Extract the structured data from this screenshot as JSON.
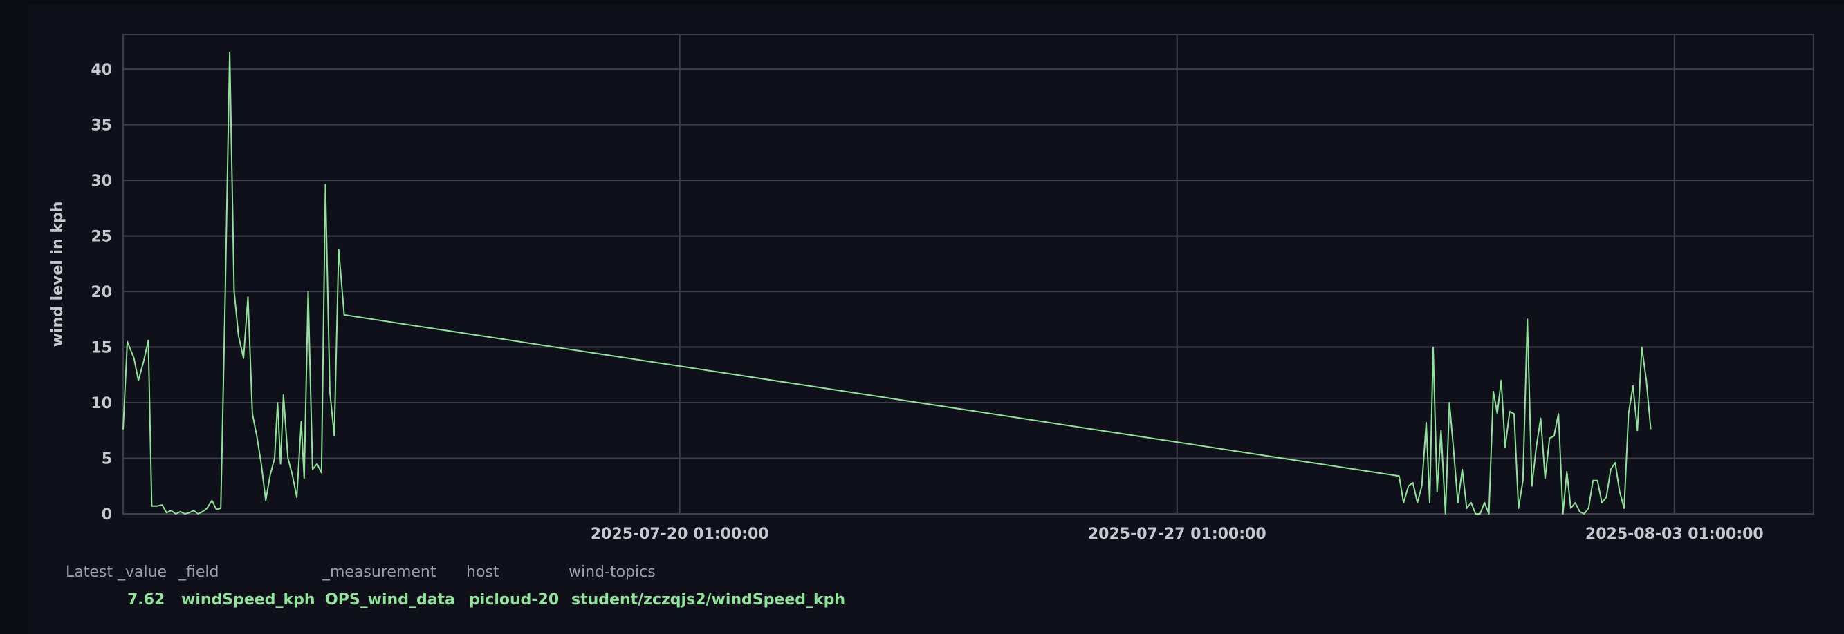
{
  "chart_data": {
    "type": "line",
    "ylabel": "wind level in kph",
    "ylim": [
      0,
      41.5
    ],
    "yticks": [
      0,
      5,
      10,
      15,
      20,
      25,
      30,
      35,
      40
    ],
    "xlim": [
      "2025-07-12 05:00:00",
      "2025-08-05 00:00:00"
    ],
    "xticks": [
      "2025-07-20 01:00:00",
      "2025-07-27 01:00:00",
      "2025-08-03 01:00:00"
    ],
    "grid": true,
    "series_color": "#8fe39a",
    "series": [
      {
        "values": [
          [
            "2025-07-12 05:00:00",
            7.6
          ],
          [
            "2025-07-12 06:25:00",
            15.5
          ],
          [
            "2025-07-12 08:40:00",
            14.0
          ],
          [
            "2025-07-12 10:10:00",
            12.0
          ],
          [
            "2025-07-12 12:00:00",
            13.8
          ],
          [
            "2025-07-12 13:30:00",
            15.6
          ],
          [
            "2025-07-12 14:40:00",
            0.7
          ],
          [
            "2025-07-12 16:30:00",
            0.7
          ],
          [
            "2025-07-12 18:10:00",
            0.8
          ],
          [
            "2025-07-12 19:40:00",
            0.1
          ],
          [
            "2025-07-12 21:10:00",
            0.3
          ],
          [
            "2025-07-12 22:50:00",
            0.0
          ],
          [
            "2025-07-13 00:20:00",
            0.2
          ],
          [
            "2025-07-13 01:50:00",
            0.0
          ],
          [
            "2025-07-13 03:20:00",
            0.1
          ],
          [
            "2025-07-13 04:50:00",
            0.3
          ],
          [
            "2025-07-13 06:20:00",
            0.0
          ],
          [
            "2025-07-13 07:50:00",
            0.2
          ],
          [
            "2025-07-13 09:20:00",
            0.5
          ],
          [
            "2025-07-13 11:00:00",
            1.2
          ],
          [
            "2025-07-13 12:30:00",
            0.4
          ],
          [
            "2025-07-13 14:00:00",
            0.5
          ],
          [
            "2025-07-13 15:30:00",
            20.0
          ],
          [
            "2025-07-13 17:00:00",
            41.5
          ],
          [
            "2025-07-13 18:30:00",
            20.0
          ],
          [
            "2025-07-13 20:00:00",
            16.0
          ],
          [
            "2025-07-13 21:40:00",
            14.0
          ],
          [
            "2025-07-13 23:10:00",
            19.5
          ],
          [
            "2025-07-14 00:40:00",
            9.0
          ],
          [
            "2025-07-14 02:10:00",
            7.0
          ],
          [
            "2025-07-14 03:40:00",
            4.5
          ],
          [
            "2025-07-14 05:10:00",
            1.2
          ],
          [
            "2025-07-14 06:40:00",
            3.5
          ],
          [
            "2025-07-14 08:10:00",
            5.0
          ],
          [
            "2025-07-14 09:10:00",
            10.0
          ],
          [
            "2025-07-14 10:10:00",
            4.5
          ],
          [
            "2025-07-14 11:10:00",
            10.7
          ],
          [
            "2025-07-14 12:40:00",
            5.0
          ],
          [
            "2025-07-14 14:10:00",
            3.5
          ],
          [
            "2025-07-14 15:40:00",
            1.5
          ],
          [
            "2025-07-14 17:10:00",
            8.3
          ],
          [
            "2025-07-14 18:10:00",
            3.2
          ],
          [
            "2025-07-14 19:30:00",
            20.0
          ],
          [
            "2025-07-14 21:00:00",
            4.0
          ],
          [
            "2025-07-14 22:30:00",
            4.5
          ],
          [
            "2025-07-15 00:00:00",
            3.7
          ],
          [
            "2025-07-15 01:20:00",
            29.6
          ],
          [
            "2025-07-15 02:50:00",
            11.0
          ],
          [
            "2025-07-15 04:20:00",
            7.0
          ],
          [
            "2025-07-15 05:50:00",
            23.8
          ],
          [
            "2025-07-15 07:40:00",
            17.9
          ],
          [
            "2025-07-30 04:00:00",
            3.4
          ],
          [
            "2025-07-30 05:30:00",
            1.0
          ],
          [
            "2025-07-30 07:10:00",
            2.5
          ],
          [
            "2025-07-30 08:40:00",
            2.8
          ],
          [
            "2025-07-30 10:10:00",
            1.0
          ],
          [
            "2025-07-30 11:40:00",
            2.5
          ],
          [
            "2025-07-30 13:10:00",
            8.2
          ],
          [
            "2025-07-30 14:20:00",
            1.0
          ],
          [
            "2025-07-30 15:30:00",
            15.0
          ],
          [
            "2025-07-30 16:50:00",
            2.0
          ],
          [
            "2025-07-30 18:10:00",
            7.5
          ],
          [
            "2025-07-30 19:40:00",
            0.0
          ],
          [
            "2025-07-30 21:00:00",
            10.0
          ],
          [
            "2025-07-30 22:20:00",
            6.0
          ],
          [
            "2025-07-30 23:50:00",
            1.0
          ],
          [
            "2025-07-31 01:20:00",
            4.0
          ],
          [
            "2025-07-31 02:50:00",
            0.5
          ],
          [
            "2025-07-31 04:20:00",
            1.0
          ],
          [
            "2025-07-31 05:50:00",
            0.0
          ],
          [
            "2025-07-31 07:20:00",
            0.0
          ],
          [
            "2025-07-31 08:50:00",
            1.0
          ],
          [
            "2025-07-31 10:20:00",
            0.0
          ],
          [
            "2025-07-31 11:50:00",
            11.0
          ],
          [
            "2025-07-31 13:10:00",
            9.0
          ],
          [
            "2025-07-31 14:30:00",
            12.0
          ],
          [
            "2025-07-31 15:50:00",
            6.0
          ],
          [
            "2025-07-31 17:20:00",
            9.2
          ],
          [
            "2025-07-31 18:50:00",
            9.0
          ],
          [
            "2025-07-31 20:20:00",
            0.5
          ],
          [
            "2025-07-31 21:50:00",
            3.0
          ],
          [
            "2025-07-31 23:20:00",
            17.5
          ],
          [
            "2025-08-01 00:50:00",
            2.5
          ],
          [
            "2025-08-01 02:20:00",
            6.0
          ],
          [
            "2025-08-01 03:50:00",
            8.6
          ],
          [
            "2025-08-01 05:20:00",
            3.2
          ],
          [
            "2025-08-01 06:50:00",
            6.8
          ],
          [
            "2025-08-01 08:20:00",
            7.0
          ],
          [
            "2025-08-01 09:50:00",
            9.0
          ],
          [
            "2025-08-01 11:20:00",
            0.0
          ],
          [
            "2025-08-01 12:40:00",
            3.8
          ],
          [
            "2025-08-01 14:00:00",
            0.5
          ],
          [
            "2025-08-01 15:30:00",
            1.0
          ],
          [
            "2025-08-01 17:00:00",
            0.2
          ],
          [
            "2025-08-01 18:30:00",
            0.0
          ],
          [
            "2025-08-01 20:00:00",
            0.5
          ],
          [
            "2025-08-01 21:30:00",
            3.0
          ],
          [
            "2025-08-01 23:00:00",
            3.0
          ],
          [
            "2025-08-02 00:30:00",
            1.0
          ],
          [
            "2025-08-02 02:00:00",
            1.5
          ],
          [
            "2025-08-02 03:30:00",
            4.0
          ],
          [
            "2025-08-02 05:00:00",
            4.6
          ],
          [
            "2025-08-02 06:30:00",
            2.0
          ],
          [
            "2025-08-02 08:00:00",
            0.5
          ],
          [
            "2025-08-02 09:30:00",
            9.0
          ],
          [
            "2025-08-02 11:00:00",
            11.5
          ],
          [
            "2025-08-02 12:30:00",
            7.5
          ],
          [
            "2025-08-02 14:00:00",
            15.0
          ],
          [
            "2025-08-02 15:30:00",
            12.0
          ],
          [
            "2025-08-02 17:00:00",
            7.62
          ]
        ]
      }
    ]
  },
  "legend": {
    "headers": [
      "Latest _value",
      "_field",
      "_measurement",
      "host",
      "wind-topics"
    ],
    "values": [
      "7.62",
      "windSpeed_kph",
      "OPS_wind_data",
      "picloud-20",
      "student/zczqjs2/windSpeed_kph"
    ]
  }
}
